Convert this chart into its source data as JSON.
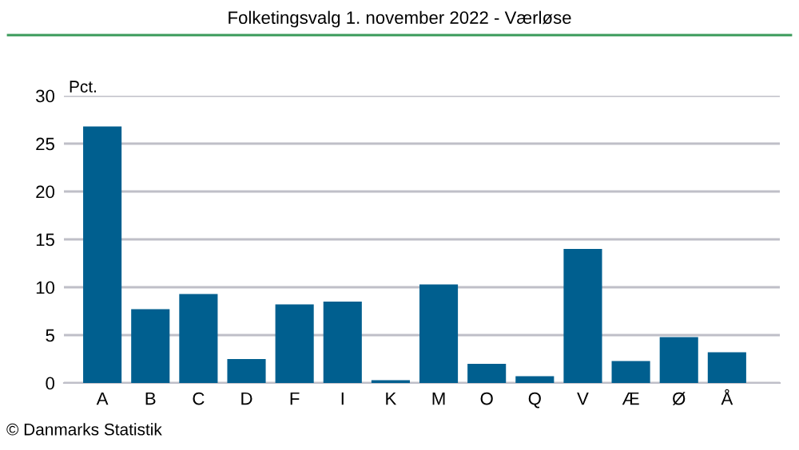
{
  "chart_data": {
    "type": "bar",
    "title": "Folketingsvalg 1. november 2022 - Værløse",
    "ylabel": "Pct.",
    "categories": [
      "A",
      "B",
      "C",
      "D",
      "F",
      "I",
      "K",
      "M",
      "O",
      "Q",
      "V",
      "Æ",
      "Ø",
      "Å"
    ],
    "values": [
      26.8,
      7.7,
      9.3,
      2.5,
      8.2,
      8.5,
      0.3,
      10.3,
      2.0,
      0.7,
      14.0,
      2.3,
      4.8,
      3.2
    ],
    "color": "#005f8f",
    "ylim": [
      0,
      30
    ],
    "yticks": [
      0,
      5,
      10,
      15,
      20,
      25,
      30
    ],
    "grid": "y",
    "annotations": [
      "© Danmarks Statistik"
    ]
  }
}
